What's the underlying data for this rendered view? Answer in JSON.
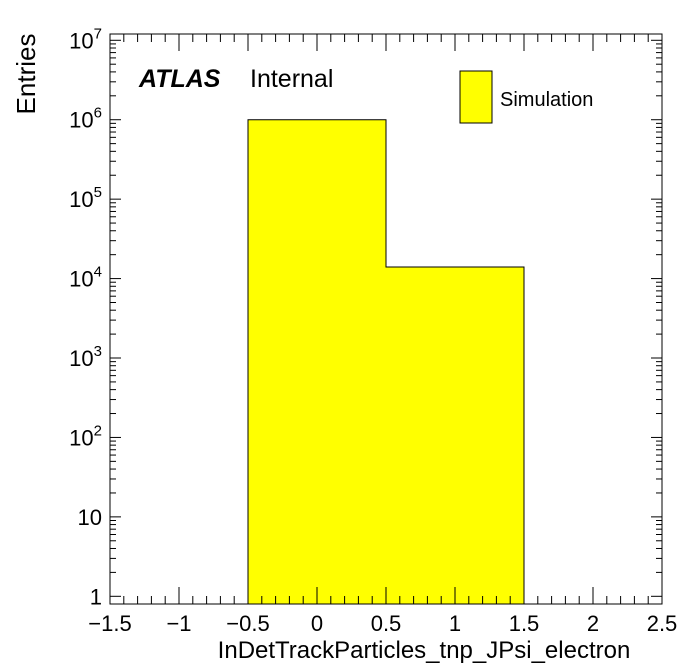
{
  "chart_data": {
    "type": "bar",
    "title": "",
    "xlabel": "InDetTrackParticles_tnp_JPsi_electron",
    "ylabel": "Entries",
    "xlim": [
      -1.5,
      2.5
    ],
    "ylim": [
      0.8,
      12000000
    ],
    "y_scale": "log",
    "x_ticks": [
      "-1.5",
      "-1",
      "-0.5",
      "0",
      "0.5",
      "1",
      "1.5",
      "2",
      "2.5"
    ],
    "bins": [
      {
        "low": -0.5,
        "high": 0.5,
        "value": 1000000
      },
      {
        "low": 0.5,
        "high": 1.5,
        "value": 14000
      }
    ],
    "fill_color": "#ffff00",
    "legend": {
      "label": "Simulation",
      "position": "top-right"
    },
    "experiment_label": "ATLAS",
    "status_label": "Internal"
  }
}
